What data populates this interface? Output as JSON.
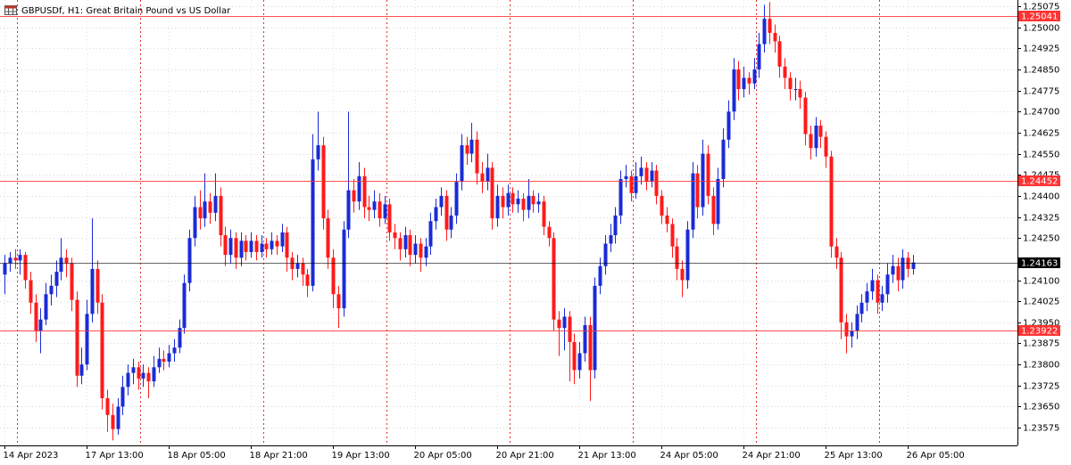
{
  "chart_data": {
    "type": "candlestick",
    "title": "GBPUSDf, H1:  Great Britain Pound vs US Dollar",
    "bull_color": "#1a2bd6",
    "bear_color": "#ff1a1a",
    "ylim": [
      1.23512,
      1.25097
    ],
    "yticks": [
      1.25075,
      {
        "value": 1.25,
        "label": "1.25000"
      },
      1.24925,
      {
        "value": 1.2485,
        "label": "1.24850"
      },
      1.24775,
      {
        "value": 1.247,
        "label": "1.24700"
      },
      1.24625,
      {
        "value": 1.2455,
        "label": "1.24550"
      },
      1.24475,
      {
        "value": 1.244,
        "label": "1.24400"
      },
      1.24325,
      {
        "value": 1.2425,
        "label": "1.24250"
      },
      {
        "value": 1.241,
        "label": "1.24100"
      },
      1.24025,
      {
        "value": 1.2395,
        "label": "1.23950"
      },
      1.23875,
      {
        "value": 1.238,
        "label": "1.23800"
      },
      1.23725,
      {
        "value": 1.2365,
        "label": "1.23650"
      },
      1.23575
    ],
    "grid": true,
    "levels": [
      {
        "value": 1.25041,
        "color": "#ff3333"
      },
      {
        "value": 1.24452,
        "color": "#ff3333"
      },
      {
        "value": 1.24163,
        "color": "#000000"
      },
      {
        "value": 1.23922,
        "color": "#ff3333"
      }
    ],
    "separators": [
      3,
      27,
      51,
      75,
      99,
      123,
      147,
      171
    ],
    "categories": [
      "14 Apr 2023",
      null,
      null,
      null,
      null,
      null,
      null,
      null,
      null,
      null,
      null,
      null,
      null,
      null,
      null,
      null,
      "17 Apr 13:00",
      null,
      null,
      null,
      null,
      null,
      null,
      null,
      null,
      null,
      null,
      null,
      null,
      null,
      null,
      null,
      "18 Apr 05:00",
      null,
      null,
      null,
      null,
      null,
      null,
      null,
      null,
      null,
      null,
      null,
      null,
      null,
      null,
      null,
      "18 Apr 21:00",
      null,
      null,
      null,
      null,
      null,
      null,
      null,
      null,
      null,
      null,
      null,
      null,
      null,
      null,
      null,
      "19 Apr 13:00",
      null,
      null,
      null,
      null,
      null,
      null,
      null,
      null,
      null,
      null,
      null,
      null,
      null,
      null,
      null,
      "20 Apr 05:00",
      null,
      null,
      null,
      null,
      null,
      null,
      null,
      null,
      null,
      null,
      null,
      null,
      null,
      null,
      null,
      "20 Apr 21:00",
      null,
      null,
      null,
      null,
      null,
      null,
      null,
      null,
      null,
      null,
      null,
      null,
      null,
      null,
      null,
      "21 Apr 13:00",
      null,
      null,
      null,
      null,
      null,
      null,
      null,
      null,
      null,
      null,
      null,
      null,
      null,
      null,
      null,
      "24 Apr 05:00",
      null,
      null,
      null,
      null,
      null,
      null,
      null,
      null,
      null,
      null,
      null,
      null,
      null,
      null,
      null,
      "24 Apr 21:00",
      null,
      null,
      null,
      null,
      null,
      null,
      null,
      null,
      null,
      null,
      null,
      null,
      null,
      null,
      null,
      "25 Apr 13:00",
      null,
      null,
      null,
      null,
      null,
      null,
      null,
      null,
      null,
      null,
      null,
      null,
      null,
      null,
      null,
      "26 Apr 05:00",
      null
    ],
    "candles": [
      [
        1.2412,
        1.2419,
        1.2405,
        1.2416
      ],
      [
        1.2416,
        1.242,
        1.2413,
        1.2418
      ],
      [
        1.2418,
        1.2421,
        1.2414,
        1.2417
      ],
      [
        1.2417,
        1.2421,
        1.2412,
        1.2419
      ],
      [
        1.2419,
        1.242,
        1.2407,
        1.241
      ],
      [
        1.241,
        1.2413,
        1.2398,
        1.2402
      ],
      [
        1.2402,
        1.2405,
        1.2388,
        1.2392
      ],
      [
        1.2392,
        1.24,
        1.2384,
        1.2396
      ],
      [
        1.2396,
        1.2409,
        1.2394,
        1.2405
      ],
      [
        1.2405,
        1.2412,
        1.2401,
        1.2408
      ],
      [
        1.2408,
        1.2417,
        1.2404,
        1.2413
      ],
      [
        1.2413,
        1.2425,
        1.241,
        1.2418
      ],
      [
        1.2418,
        1.2421,
        1.2411,
        1.2416
      ],
      [
        1.2416,
        1.2418,
        1.2399,
        1.2403
      ],
      [
        1.2403,
        1.2406,
        1.2372,
        1.2376
      ],
      [
        1.2376,
        1.2386,
        1.2373,
        1.238
      ],
      [
        1.238,
        1.2403,
        1.2378,
        1.2398
      ],
      [
        1.2398,
        1.2432,
        1.2395,
        1.2414
      ],
      [
        1.2414,
        1.2417,
        1.2398,
        1.2402
      ],
      [
        1.2402,
        1.2405,
        1.2364,
        1.2368
      ],
      [
        1.2368,
        1.2371,
        1.2356,
        1.2362
      ],
      [
        1.2362,
        1.2366,
        1.2353,
        1.2357
      ],
      [
        1.2357,
        1.2368,
        1.2355,
        1.2365
      ],
      [
        1.2365,
        1.2376,
        1.2362,
        1.2372
      ],
      [
        1.2372,
        1.238,
        1.2369,
        1.2377
      ],
      [
        1.2377,
        1.2382,
        1.2373,
        1.2379
      ],
      [
        1.2379,
        1.2381,
        1.2371,
        1.2375
      ],
      [
        1.2375,
        1.238,
        1.2372,
        1.2377
      ],
      [
        1.2377,
        1.2379,
        1.2368,
        1.2374
      ],
      [
        1.2374,
        1.2383,
        1.2372,
        1.2379
      ],
      [
        1.2379,
        1.2386,
        1.2377,
        1.2382
      ],
      [
        1.2382,
        1.2385,
        1.2378,
        1.2381
      ],
      [
        1.2381,
        1.2387,
        1.2379,
        1.2384
      ],
      [
        1.2384,
        1.2389,
        1.2381,
        1.2386
      ],
      [
        1.2386,
        1.2396,
        1.2384,
        1.2393
      ],
      [
        1.2393,
        1.2412,
        1.2391,
        1.2409
      ],
      [
        1.2409,
        1.2428,
        1.2406,
        1.2425
      ],
      [
        1.2425,
        1.244,
        1.2422,
        1.2436
      ],
      [
        1.2436,
        1.2442,
        1.2428,
        1.2432
      ],
      [
        1.2432,
        1.2448,
        1.2429,
        1.2438
      ],
      [
        1.2438,
        1.2441,
        1.243,
        1.2434
      ],
      [
        1.2434,
        1.2448,
        1.2431,
        1.244
      ],
      [
        1.244,
        1.2443,
        1.2422,
        1.2426
      ],
      [
        1.2426,
        1.2429,
        1.2415,
        1.2419
      ],
      [
        1.2419,
        1.2428,
        1.2416,
        1.2425
      ],
      [
        1.2425,
        1.2427,
        1.2414,
        1.2418
      ],
      [
        1.2418,
        1.2427,
        1.2415,
        1.2424
      ],
      [
        1.2424,
        1.2426,
        1.2417,
        1.242
      ],
      [
        1.242,
        1.2427,
        1.2418,
        1.2424
      ],
      [
        1.2424,
        1.2426,
        1.2417,
        1.242
      ],
      [
        1.242,
        1.2426,
        1.2418,
        1.2423
      ],
      [
        1.2423,
        1.2425,
        1.2418,
        1.2421
      ],
      [
        1.2421,
        1.2427,
        1.2419,
        1.2424
      ],
      [
        1.2424,
        1.2426,
        1.2419,
        1.2422
      ],
      [
        1.2422,
        1.243,
        1.242,
        1.2427
      ],
      [
        1.2427,
        1.2429,
        1.2413,
        1.2418
      ],
      [
        1.2418,
        1.242,
        1.241,
        1.2414
      ],
      [
        1.2414,
        1.2419,
        1.2411,
        1.2416
      ],
      [
        1.2416,
        1.2418,
        1.2408,
        1.2412
      ],
      [
        1.2412,
        1.2414,
        1.2404,
        1.2408
      ],
      [
        1.2408,
        1.2462,
        1.2406,
        1.2453
      ],
      [
        1.2453,
        1.247,
        1.2449,
        1.2458
      ],
      [
        1.2458,
        1.2461,
        1.2428,
        1.2432
      ],
      [
        1.2432,
        1.2435,
        1.2414,
        1.2418
      ],
      [
        1.2418,
        1.2421,
        1.24,
        1.2405
      ],
      [
        1.2405,
        1.2408,
        1.2393,
        1.24
      ],
      [
        1.24,
        1.2431,
        1.2397,
        1.2428
      ],
      [
        1.2428,
        1.247,
        1.2425,
        1.2442
      ],
      [
        1.2442,
        1.2446,
        1.2434,
        1.2438
      ],
      [
        1.2438,
        1.2452,
        1.2435,
        1.2447
      ],
      [
        1.2447,
        1.245,
        1.2432,
        1.2436
      ],
      [
        1.2436,
        1.244,
        1.2431,
        1.2435
      ],
      [
        1.2435,
        1.2442,
        1.2432,
        1.2438
      ],
      [
        1.2438,
        1.2441,
        1.2429,
        1.2432
      ],
      [
        1.2432,
        1.244,
        1.243,
        1.2437
      ],
      [
        1.2437,
        1.2439,
        1.2424,
        1.2427
      ],
      [
        1.2427,
        1.243,
        1.2421,
        1.2425
      ],
      [
        1.2425,
        1.2427,
        1.2417,
        1.2421
      ],
      [
        1.2421,
        1.2429,
        1.2418,
        1.2426
      ],
      [
        1.2426,
        1.2428,
        1.2415,
        1.2419
      ],
      [
        1.2419,
        1.2426,
        1.2416,
        1.2423
      ],
      [
        1.2423,
        1.2425,
        1.2413,
        1.2418
      ],
      [
        1.2418,
        1.2425,
        1.2415,
        1.2422
      ],
      [
        1.2422,
        1.2434,
        1.2419,
        1.2431
      ],
      [
        1.2431,
        1.2439,
        1.2428,
        1.2436
      ],
      [
        1.2436,
        1.2443,
        1.2433,
        1.244
      ],
      [
        1.244,
        1.2442,
        1.2424,
        1.2428
      ],
      [
        1.2428,
        1.2436,
        1.2425,
        1.2433
      ],
      [
        1.2433,
        1.2448,
        1.243,
        1.2445
      ],
      [
        1.2445,
        1.2462,
        1.2442,
        1.2458
      ],
      [
        1.2458,
        1.2461,
        1.2451,
        1.2455
      ],
      [
        1.2455,
        1.2466,
        1.2452,
        1.246
      ],
      [
        1.246,
        1.2463,
        1.2444,
        1.2448
      ],
      [
        1.2448,
        1.2452,
        1.2441,
        1.2445
      ],
      [
        1.2445,
        1.2455,
        1.2442,
        1.245
      ],
      [
        1.245,
        1.2452,
        1.2428,
        1.2432
      ],
      [
        1.2432,
        1.2444,
        1.2429,
        1.244
      ],
      [
        1.244,
        1.2443,
        1.2432,
        1.2436
      ],
      [
        1.2436,
        1.2444,
        1.2433,
        1.2441
      ],
      [
        1.2441,
        1.2443,
        1.2434,
        1.2437
      ],
      [
        1.2437,
        1.2442,
        1.2434,
        1.2439
      ],
      [
        1.2439,
        1.2441,
        1.2431,
        1.2435
      ],
      [
        1.2435,
        1.2446,
        1.2432,
        1.244
      ],
      [
        1.244,
        1.2442,
        1.2434,
        1.2437
      ],
      [
        1.2437,
        1.2441,
        1.2434,
        1.2438
      ],
      [
        1.2438,
        1.244,
        1.2426,
        1.2429
      ],
      [
        1.2429,
        1.2431,
        1.2422,
        1.2425
      ],
      [
        1.2425,
        1.2427,
        1.2392,
        1.2396
      ],
      [
        1.2396,
        1.2399,
        1.2383,
        1.2393
      ],
      [
        1.2393,
        1.24,
        1.2385,
        1.2397
      ],
      [
        1.2397,
        1.2399,
        1.2374,
        1.2388
      ],
      [
        1.2388,
        1.2391,
        1.2373,
        1.2378
      ],
      [
        1.2378,
        1.2388,
        1.2375,
        1.2384
      ],
      [
        1.2384,
        1.2397,
        1.2381,
        1.2394
      ],
      [
        1.2394,
        1.2397,
        1.2367,
        1.2378
      ],
      [
        1.2378,
        1.2411,
        1.2375,
        1.2408
      ],
      [
        1.2408,
        1.2418,
        1.2405,
        1.2415
      ],
      [
        1.2415,
        1.2426,
        1.2412,
        1.2423
      ],
      [
        1.2423,
        1.243,
        1.242,
        1.2426
      ],
      [
        1.2426,
        1.2436,
        1.2423,
        1.2433
      ],
      [
        1.2433,
        1.2449,
        1.243,
        1.2446
      ],
      [
        1.2446,
        1.2451,
        1.2443,
        1.2447
      ],
      [
        1.2447,
        1.2449,
        1.2438,
        1.2441
      ],
      [
        1.2441,
        1.2452,
        1.2439,
        1.2447
      ],
      [
        1.2447,
        1.2454,
        1.2444,
        1.245
      ],
      [
        1.245,
        1.2452,
        1.2442,
        1.2445
      ],
      [
        1.2445,
        1.2452,
        1.2443,
        1.2449
      ],
      [
        1.2449,
        1.2451,
        1.2437,
        1.244
      ],
      [
        1.244,
        1.2442,
        1.243,
        1.2433
      ],
      [
        1.2433,
        1.2436,
        1.2427,
        1.243
      ],
      [
        1.243,
        1.2432,
        1.2418,
        1.2422
      ],
      [
        1.2422,
        1.2425,
        1.241,
        1.2414
      ],
      [
        1.2414,
        1.2417,
        1.2404,
        1.241
      ],
      [
        1.241,
        1.2431,
        1.2407,
        1.2428
      ],
      [
        1.2428,
        1.2452,
        1.2425,
        1.2448
      ],
      [
        1.2448,
        1.2451,
        1.2432,
        1.2436
      ],
      [
        1.2436,
        1.246,
        1.2433,
        1.2455
      ],
      [
        1.2455,
        1.2458,
        1.2437,
        1.244
      ],
      [
        1.244,
        1.2443,
        1.2426,
        1.243
      ],
      [
        1.243,
        1.245,
        1.2428,
        1.2446
      ],
      [
        1.2446,
        1.2464,
        1.2443,
        1.246
      ],
      [
        1.246,
        1.2474,
        1.2457,
        1.247
      ],
      [
        1.247,
        1.2489,
        1.2467,
        1.2485
      ],
      [
        1.2485,
        1.2488,
        1.2474,
        1.2478
      ],
      [
        1.2478,
        1.2486,
        1.2475,
        1.2482
      ],
      [
        1.2482,
        1.2484,
        1.2476,
        1.248
      ],
      [
        1.248,
        1.2489,
        1.2478,
        1.2485
      ],
      [
        1.2485,
        1.2498,
        1.2482,
        1.2494
      ],
      [
        1.2494,
        1.2508,
        1.2491,
        1.2503
      ],
      [
        1.2503,
        1.2509,
        1.2494,
        1.2498
      ],
      [
        1.2498,
        1.2501,
        1.2491,
        1.2495
      ],
      [
        1.2495,
        1.2497,
        1.2482,
        1.2486
      ],
      [
        1.2486,
        1.2489,
        1.2478,
        1.2482
      ],
      [
        1.2482,
        1.2484,
        1.2474,
        1.2478
      ],
      [
        1.2478,
        1.2482,
        1.2474,
        1.2478
      ],
      [
        1.2478,
        1.2481,
        1.2471,
        1.2475
      ],
      [
        1.2475,
        1.2477,
        1.2458,
        1.2462
      ],
      [
        1.2462,
        1.2465,
        1.2453,
        1.2457
      ],
      [
        1.2457,
        1.2468,
        1.2454,
        1.2465
      ],
      [
        1.2465,
        1.2467,
        1.2457,
        1.2461
      ],
      [
        1.2461,
        1.2463,
        1.245,
        1.2454
      ],
      [
        1.2454,
        1.2456,
        1.2418,
        1.2422
      ],
      [
        1.2422,
        1.2425,
        1.2414,
        1.2418
      ],
      [
        1.2418,
        1.242,
        1.2389,
        1.2395
      ],
      [
        1.2395,
        1.2398,
        1.2384,
        1.239
      ],
      [
        1.239,
        1.2395,
        1.2386,
        1.2392
      ],
      [
        1.2392,
        1.2401,
        1.2389,
        1.2398
      ],
      [
        1.2398,
        1.2405,
        1.2395,
        1.2402
      ],
      [
        1.2402,
        1.2409,
        1.2399,
        1.2406
      ],
      [
        1.2406,
        1.2414,
        1.2403,
        1.241
      ],
      [
        1.241,
        1.2412,
        1.2398,
        1.2402
      ],
      [
        1.2402,
        1.2408,
        1.2399,
        1.2405
      ],
      [
        1.2405,
        1.2416,
        1.2402,
        1.2412
      ],
      [
        1.2412,
        1.2419,
        1.2409,
        1.2415
      ],
      [
        1.2415,
        1.2418,
        1.2406,
        1.241
      ],
      [
        1.241,
        1.2421,
        1.2407,
        1.2418
      ],
      [
        1.2418,
        1.242,
        1.2411,
        1.2414
      ],
      [
        1.2414,
        1.2419,
        1.2412,
        1.24163
      ]
    ]
  }
}
